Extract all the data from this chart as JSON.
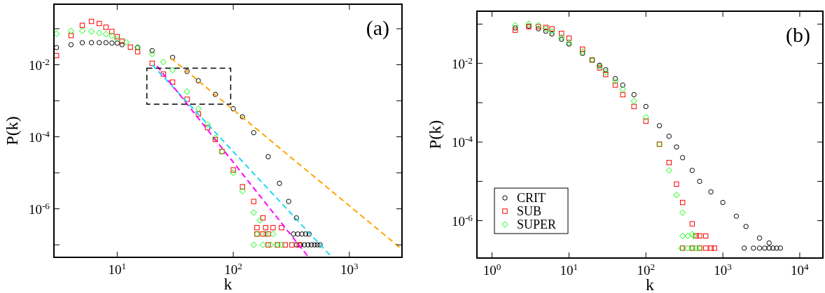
{
  "chart_data": [
    {
      "type": "scatter",
      "xlabel": "k",
      "ylabel": "P(k)",
      "annotations": [
        "(a)"
      ],
      "log": "xy",
      "legend": false,
      "grid": false,
      "xlim": [
        2.85,
        2840
      ],
      "ylim": [
        4.5e-08,
        0.48
      ],
      "xticks": [
        {
          "value": 10,
          "label": "10$^{1}$"
        },
        {
          "value": 100,
          "label": "10$^{2}$"
        },
        {
          "value": 1000,
          "label": "10$^{3}$"
        }
      ],
      "yticks": [
        {
          "value": 1e-07,
          "label": null
        },
        {
          "value": 1e-06,
          "label": "10$^{-6}$"
        },
        {
          "value": 1e-05,
          "label": null
        },
        {
          "value": 0.0001,
          "label": "10$^{-4}$"
        },
        {
          "value": 0.001,
          "label": null
        },
        {
          "value": 0.01,
          "label": "10$^{-2}$"
        },
        {
          "value": 0.1,
          "label": null
        }
      ],
      "series": [
        {
          "color": "#000000",
          "marker": "circle",
          "x": [
            3,
            4,
            5,
            6,
            7,
            8,
            9,
            10,
            11,
            15,
            20,
            30,
            40,
            50,
            70,
            100,
            120,
            150,
            200,
            250,
            300,
            350,
            330,
            360,
            390,
            420,
            450,
            350,
            380,
            410,
            440,
            470,
            500,
            530,
            560
          ],
          "values": [
            0.03,
            0.036,
            0.041,
            0.041,
            0.041,
            0.041,
            0.04,
            0.04,
            0.036,
            0.03,
            0.0246,
            0.016,
            0.0065,
            0.0036,
            0.0015,
            0.0006,
            0.00036,
            0.00013,
            2.8e-05,
            5.1e-06,
            1.6e-06,
            5.6e-07,
            2e-07,
            2e-07,
            2e-07,
            2e-07,
            2e-07,
            1e-07,
            1e-07,
            1e-07,
            1e-07,
            1e-07,
            1e-07,
            1e-07,
            1e-07
          ]
        },
        {
          "color": "#ff0000",
          "marker": "square",
          "x": [
            3,
            4,
            5,
            6,
            7,
            8,
            9,
            10,
            11,
            13,
            15,
            20,
            25,
            30,
            40,
            50,
            60,
            70,
            80,
            100,
            120,
            150,
            180,
            160,
            190,
            220,
            260,
            160,
            180,
            200,
            200,
            240,
            280,
            320,
            370
          ],
          "values": [
            0.018,
            0.065,
            0.124,
            0.16,
            0.14,
            0.11,
            0.084,
            0.06,
            0.045,
            0.031,
            0.023,
            0.011,
            0.0055,
            0.0033,
            0.0011,
            0.00043,
            0.00018,
            8.4e-05,
            3.9e-05,
            1.2e-05,
            4.1e-06,
            1.6e-06,
            5.6e-07,
            3e-07,
            3e-07,
            3e-07,
            3e-07,
            2e-07,
            2e-07,
            2e-07,
            1e-07,
            1e-07,
            1e-07,
            1e-07,
            1e-07
          ]
        },
        {
          "color": "#00ff00",
          "marker": "diamond",
          "x": [
            3,
            4,
            5,
            6,
            7,
            8,
            9,
            10,
            12,
            15,
            20,
            25,
            30,
            40,
            50,
            60,
            70,
            80,
            100,
            120,
            150,
            170,
            160,
            190,
            220,
            150,
            180,
            210,
            240,
            260
          ],
          "values": [
            0.073,
            0.087,
            0.087,
            0.084,
            0.076,
            0.071,
            0.063,
            0.052,
            0.042,
            0.031,
            0.0198,
            0.0119,
            0.0071,
            0.0018,
            0.0006,
            0.00022,
            9.3e-05,
            3.9e-05,
            1e-05,
            3.1e-06,
            7.9e-07,
            4.8e-07,
            2e-07,
            2e-07,
            2e-07,
            1e-07,
            1e-07,
            1e-07,
            1e-07,
            1e-07
          ]
        },
        {
          "type": "line",
          "color": "#ffa500",
          "line_style": "dashed",
          "marker": "none",
          "x": [
            29,
            2840
          ],
          "values": [
            0.0153,
            7.5e-08
          ]
        },
        {
          "type": "line",
          "color": "#1fd8f0",
          "line_style": "dashed",
          "marker": "none",
          "x": [
            20,
            708
          ],
          "values": [
            0.01,
            4.5e-08
          ]
        },
        {
          "type": "line",
          "color": "#ff00ff",
          "line_style": "dashed",
          "marker": "none",
          "x": [
            22,
            446
          ],
          "values": [
            0.0092,
            4.5e-08
          ]
        }
      ]
    },
    {
      "type": "scatter",
      "xlabel": "k",
      "ylabel": "P(k)",
      "annotations": [
        "(b)"
      ],
      "log": "xy",
      "legend": "bottom left",
      "grid": false,
      "xlim": [
        0.636,
        20000
      ],
      "ylim": [
        1.12e-07,
        0.213
      ],
      "xticks": [
        {
          "value": 1,
          "label": "10$^{0}$"
        },
        {
          "value": 10,
          "label": "10$^{1}$"
        },
        {
          "value": 100,
          "label": "10$^{2}$"
        },
        {
          "value": 1000,
          "label": "10$^{3}$"
        },
        {
          "value": 10000,
          "label": "10$^{4}$"
        }
      ],
      "yticks": [
        {
          "value": 1e-06,
          "label": "10$^{-6}$"
        },
        {
          "value": 1e-05,
          "label": null
        },
        {
          "value": 0.0001,
          "label": "10$^{-4}$"
        },
        {
          "value": 0.001,
          "label": null
        },
        {
          "value": 0.01,
          "label": "10$^{-2}$"
        },
        {
          "value": 0.1,
          "label": null
        }
      ],
      "series": [
        {
          "name": "CRIT",
          "color": "#000000",
          "marker": "circle",
          "x": [
            2,
            3,
            4,
            5,
            6,
            8,
            10,
            15,
            20,
            25,
            30,
            40,
            50,
            70,
            100,
            150,
            200,
            250,
            300,
            400,
            500,
            700,
            1000,
            1500,
            2000,
            3000,
            4000,
            1900,
            2500,
            3000,
            3500,
            4000,
            4500,
            5000,
            5600
          ],
          "values": [
            0.08,
            0.089,
            0.076,
            0.066,
            0.056,
            0.041,
            0.031,
            0.018,
            0.0122,
            0.009,
            0.0069,
            0.0041,
            0.0028,
            0.0016,
            0.0008,
            0.00026,
            0.00014,
            7.5e-05,
            4e-05,
            1.9e-05,
            1e-05,
            5.4e-06,
            2.9e-06,
            1.3e-06,
            7.1e-07,
            3.6e-07,
            2.7e-07,
            2e-07,
            2e-07,
            2e-07,
            2e-07,
            2e-07,
            2e-07,
            2e-07,
            2e-07
          ]
        },
        {
          "name": "SUB",
          "color": "#ff0000",
          "marker": "square",
          "x": [
            2,
            3,
            4,
            5,
            6,
            8,
            10,
            15,
            20,
            25,
            30,
            40,
            50,
            70,
            100,
            150,
            200,
            250,
            300,
            400,
            450,
            500,
            600,
            300,
            400,
            500,
            600,
            700,
            780
          ],
          "values": [
            0.07,
            0.086,
            0.086,
            0.082,
            0.076,
            0.058,
            0.044,
            0.023,
            0.0122,
            0.0077,
            0.0052,
            0.0028,
            0.0016,
            0.0008,
            0.00034,
            8.8e-05,
            3e-05,
            8.5e-06,
            2.9e-06,
            8.3e-07,
            4.1e-07,
            4.1e-07,
            4.1e-07,
            2e-07,
            2e-07,
            2e-07,
            2e-07,
            2e-07,
            2e-07
          ]
        },
        {
          "name": "SUPER",
          "color": "#00ff00",
          "marker": "diamond",
          "x": [
            2,
            3,
            4,
            5,
            6,
            8,
            10,
            15,
            20,
            25,
            30,
            40,
            50,
            70,
            100,
            150,
            200,
            250,
            300,
            400,
            300,
            350,
            420,
            290,
            350,
            400,
            450,
            500
          ],
          "values": [
            0.093,
            0.101,
            0.093,
            0.076,
            0.065,
            0.046,
            0.034,
            0.02,
            0.0122,
            0.0083,
            0.006,
            0.0035,
            0.0022,
            0.0011,
            0.00043,
            8.8e-05,
            1.9e-05,
            4.5e-06,
            1.6e-06,
            4.5e-07,
            4.1e-07,
            4.1e-07,
            4.1e-07,
            2e-07,
            2e-07,
            2e-07,
            2e-07,
            2e-07
          ]
        }
      ]
    }
  ]
}
